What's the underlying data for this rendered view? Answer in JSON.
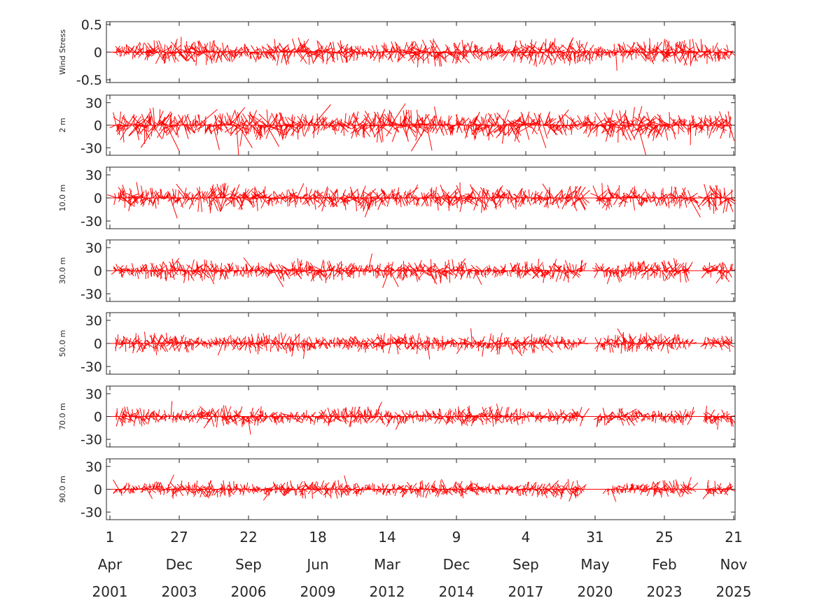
{
  "chart_data": {
    "type": "line",
    "x_range": [
      "2001-04-01",
      "2025-11-21"
    ],
    "line_color": "#ff0000",
    "date_ticks": [
      {
        "day": "1",
        "month": "Apr",
        "year": "2001",
        "date": "2001-04-01"
      },
      {
        "day": "27",
        "month": "Dec",
        "year": "2003",
        "date": "2003-12-27"
      },
      {
        "day": "22",
        "month": "Sep",
        "year": "2006",
        "date": "2006-09-22"
      },
      {
        "day": "18",
        "month": "Jun",
        "year": "2009",
        "date": "2009-06-18"
      },
      {
        "day": "14",
        "month": "Mar",
        "year": "2012",
        "date": "2012-03-14"
      },
      {
        "day": "9",
        "month": "Dec",
        "year": "2014",
        "date": "2014-12-09"
      },
      {
        "day": "4",
        "month": "Sep",
        "year": "2017",
        "date": "2017-09-04"
      },
      {
        "day": "31",
        "month": "May",
        "year": "2020",
        "date": "2020-05-31"
      },
      {
        "day": "25",
        "month": "Feb",
        "year": "2023",
        "date": "2023-02-25"
      },
      {
        "day": "21",
        "month": "Nov",
        "year": "2025",
        "date": "2025-11-21"
      }
    ],
    "panels": [
      {
        "ylabel": "Wind Stress",
        "ylim": [
          -0.55,
          0.55
        ],
        "yticks": [
          {
            "value": 0.5,
            "label": "0.5"
          },
          {
            "value": 0,
            "label": "0"
          },
          {
            "value": -0.5,
            "label": "-0.5"
          }
        ],
        "amplitude": 0.2,
        "burst": 0.35,
        "gaps": [],
        "seed": 11
      },
      {
        "ylabel": "2 m",
        "ylim": [
          -40,
          40
        ],
        "yticks": [
          {
            "value": 30,
            "label": "30"
          },
          {
            "value": 0,
            "label": "0"
          },
          {
            "value": -30,
            "label": "-30"
          }
        ],
        "amplitude": 18,
        "burst": 40,
        "gaps": [
          [
            "2019-09-20",
            "2019-11-10"
          ]
        ],
        "seed": 23
      },
      {
        "ylabel": "10.0 m",
        "ylim": [
          -40,
          40
        ],
        "yticks": [
          {
            "value": 30,
            "label": "30"
          },
          {
            "value": 0,
            "label": "0"
          },
          {
            "value": -30,
            "label": "-30"
          }
        ],
        "amplitude": 15,
        "burst": 28,
        "gaps": [
          [
            "2019-12-20",
            "2020-06-15"
          ],
          [
            "2024-05-01",
            "2024-09-01"
          ]
        ],
        "seed": 37
      },
      {
        "ylabel": "30.0 m",
        "ylim": [
          -40,
          40
        ],
        "yticks": [
          {
            "value": 30,
            "label": "30"
          },
          {
            "value": 0,
            "label": "0"
          },
          {
            "value": -30,
            "label": "-30"
          }
        ],
        "amplitude": 12,
        "burst": 24,
        "gaps": [
          [
            "2019-12-20",
            "2020-07-01"
          ],
          [
            "2024-03-01",
            "2024-09-01"
          ]
        ],
        "seed": 41
      },
      {
        "ylabel": "50.0 m",
        "ylim": [
          -40,
          40
        ],
        "yticks": [
          {
            "value": 30,
            "label": "30"
          },
          {
            "value": 0,
            "label": "0"
          },
          {
            "value": -30,
            "label": "-30"
          }
        ],
        "amplitude": 11,
        "burst": 22,
        "gaps": [
          [
            "2019-12-20",
            "2020-07-01"
          ],
          [
            "2024-03-15",
            "2024-09-15"
          ]
        ],
        "seed": 53
      },
      {
        "ylabel": "70.0 m",
        "ylim": [
          -40,
          40
        ],
        "yticks": [
          {
            "value": 30,
            "label": "30"
          },
          {
            "value": 0,
            "label": "0"
          },
          {
            "value": -30,
            "label": "-30"
          }
        ],
        "amplitude": 11,
        "burst": 22,
        "gaps": [
          [
            "2019-12-20",
            "2020-07-01"
          ],
          [
            "2024-04-01",
            "2024-09-15"
          ]
        ],
        "seed": 67
      },
      {
        "ylabel": "90.0 m",
        "ylim": [
          -40,
          40
        ],
        "yticks": [
          {
            "value": 30,
            "label": "30"
          },
          {
            "value": 0,
            "label": "0"
          },
          {
            "value": -30,
            "label": "-30"
          }
        ],
        "amplitude": 10,
        "burst": 20,
        "gaps": [
          [
            "2019-12-20",
            "2020-11-01"
          ],
          [
            "2024-04-15",
            "2024-10-01"
          ]
        ],
        "seed": 79
      }
    ]
  }
}
